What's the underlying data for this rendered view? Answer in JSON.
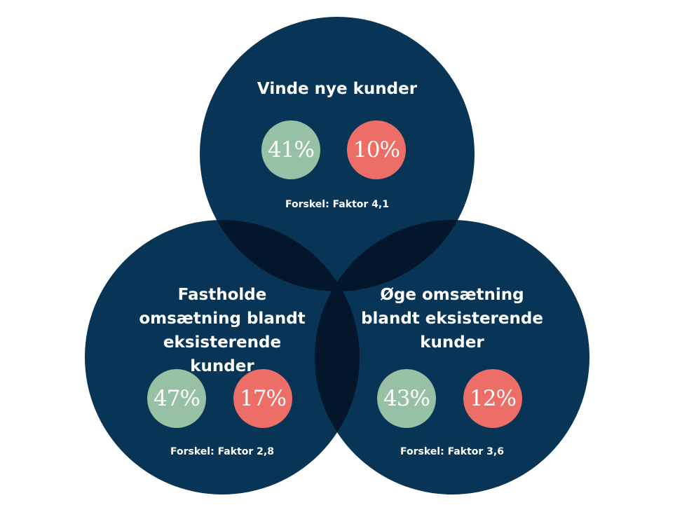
{
  "colors": {
    "circle": "#083456",
    "overlap": "#04162b",
    "positive": "#97c1a5",
    "negative": "#ec6e67",
    "text": "#ffffff"
  },
  "groups": [
    {
      "title": "Vinde nye kunder",
      "positive": "41%",
      "negative": "10%",
      "difference": "Forskel: Faktor 4,1"
    },
    {
      "title": "Fastholde omsætning blandt eksisterende kunder",
      "positive": "47%",
      "negative": "17%",
      "difference": "Forskel: Faktor 2,8"
    },
    {
      "title": "Øge omsætning blandt eksisterende kunder",
      "positive": "43%",
      "negative": "12%",
      "difference": "Forskel: Faktor 3,6"
    }
  ]
}
